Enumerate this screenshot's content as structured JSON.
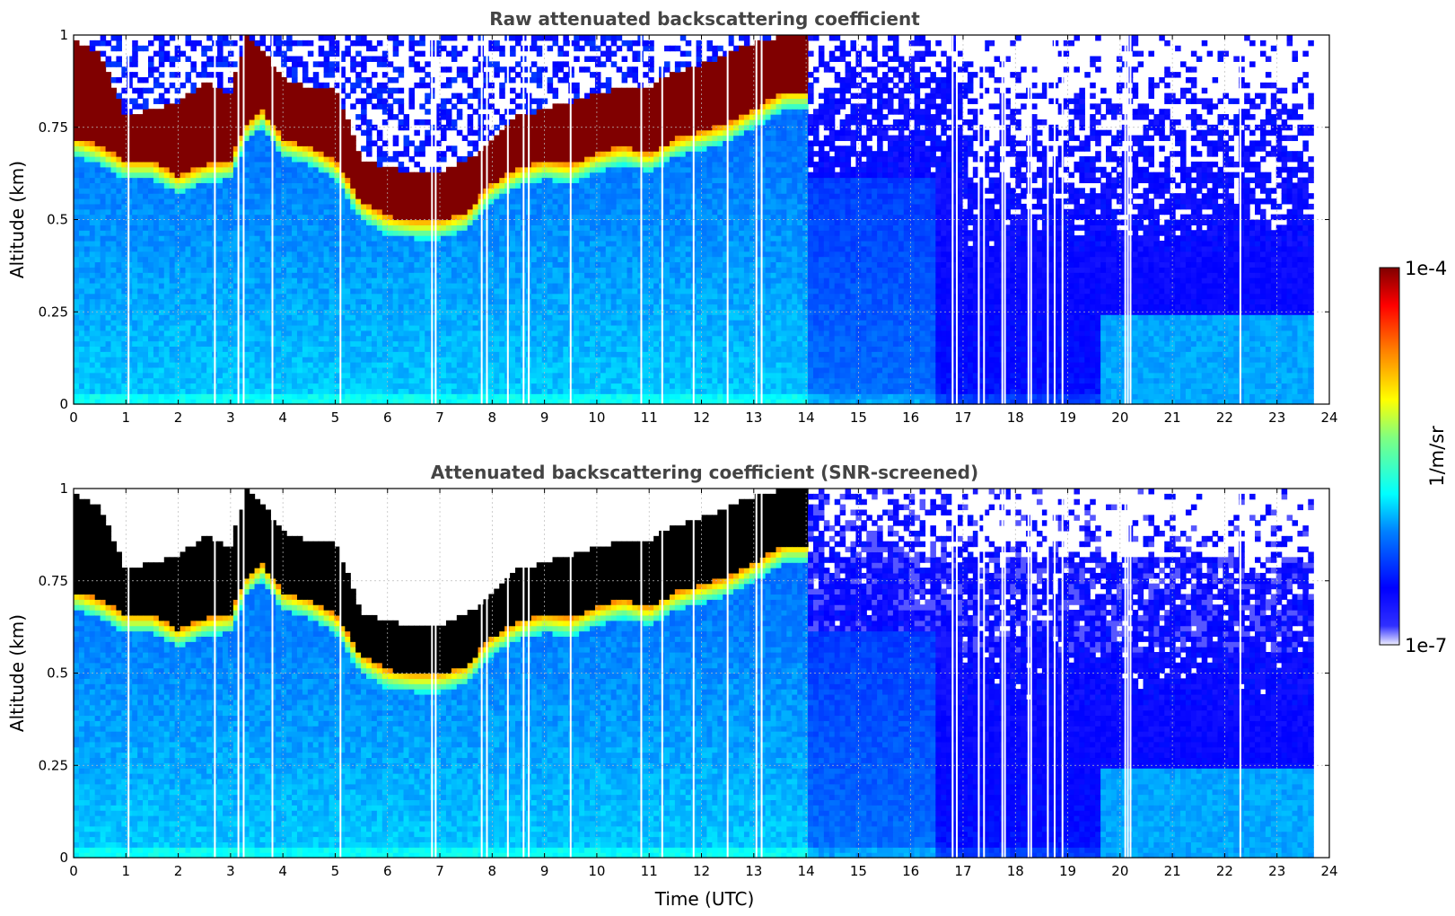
{
  "chart_data": [
    {
      "type": "heatmap",
      "title": "Raw attenuated backscattering coefficient",
      "xlabel": "",
      "ylabel": "Altitude (km)",
      "xlim": [
        0,
        24
      ],
      "ylim": [
        0,
        1
      ],
      "x_ticks": [
        "0",
        "1",
        "2",
        "3",
        "4",
        "5",
        "6",
        "7",
        "8",
        "9",
        "10",
        "11",
        "12",
        "13",
        "14",
        "15",
        "16",
        "17",
        "18",
        "19",
        "20",
        "21",
        "22",
        "23",
        "24"
      ],
      "y_ticks": [
        "0",
        "0.25",
        "0.5",
        "0.75",
        "1"
      ],
      "grid": true,
      "data_end_hour": 23.65,
      "layer": {
        "times": [
          0.1,
          0.5,
          1.0,
          1.5,
          2.0,
          2.5,
          3.0,
          3.3,
          3.6,
          4.0,
          4.5,
          5.0,
          5.5,
          6.0,
          6.5,
          7.0,
          7.5,
          8.0,
          8.5,
          9.0,
          9.5,
          10.0,
          10.5,
          11.0,
          11.5,
          12.0,
          12.5,
          13.0,
          13.6
        ],
        "base_km": [
          0.72,
          0.7,
          0.66,
          0.66,
          0.62,
          0.65,
          0.66,
          0.76,
          0.8,
          0.72,
          0.7,
          0.66,
          0.55,
          0.51,
          0.5,
          0.5,
          0.52,
          0.6,
          0.64,
          0.66,
          0.65,
          0.68,
          0.7,
          0.68,
          0.72,
          0.74,
          0.76,
          0.8,
          0.85
        ],
        "top_km": [
          0.98,
          0.95,
          0.78,
          0.8,
          0.82,
          0.87,
          0.84,
          1.0,
          0.96,
          0.88,
          0.86,
          0.86,
          0.66,
          0.64,
          0.63,
          0.63,
          0.66,
          0.71,
          0.78,
          0.8,
          0.82,
          0.84,
          0.86,
          0.86,
          0.9,
          0.92,
          0.95,
          0.98,
          1.0
        ]
      },
      "data_gaps_hours": [
        1.05,
        2.7,
        3.15,
        3.25,
        3.8,
        5.1,
        6.85,
        6.92,
        7.8,
        7.9,
        8.3,
        8.6,
        8.7,
        9.5,
        10.85,
        11.25,
        11.85,
        12.5,
        13.05,
        13.15,
        16.8,
        16.88,
        17.3,
        17.4,
        17.75,
        17.8,
        18.25,
        18.3,
        18.62,
        18.75,
        18.9,
        20.1,
        20.15,
        20.2,
        22.3
      ]
    },
    {
      "type": "heatmap",
      "title": "Attenuated backscattering coefficient (SNR-screened)",
      "xlabel": "Time (UTC)",
      "ylabel": "Altitude (km)",
      "xlim": [
        0,
        24
      ],
      "ylim": [
        0,
        1
      ],
      "x_ticks": [
        "0",
        "1",
        "2",
        "3",
        "4",
        "5",
        "6",
        "7",
        "8",
        "9",
        "10",
        "11",
        "12",
        "13",
        "14",
        "15",
        "16",
        "17",
        "18",
        "19",
        "20",
        "21",
        "22",
        "23",
        "24"
      ],
      "y_ticks": [
        "0",
        "0.25",
        "0.5",
        "0.75",
        "1"
      ],
      "grid": true,
      "screened": true
    }
  ],
  "colorbar": {
    "label": "1/m/sr",
    "max_label": "1e-4",
    "min_label": "1e-7",
    "colormap": "jet",
    "scale": "log"
  },
  "colors": {
    "background": "#ffffff",
    "title": "#444444",
    "saturated": "#800000",
    "clipped": "#000000"
  }
}
